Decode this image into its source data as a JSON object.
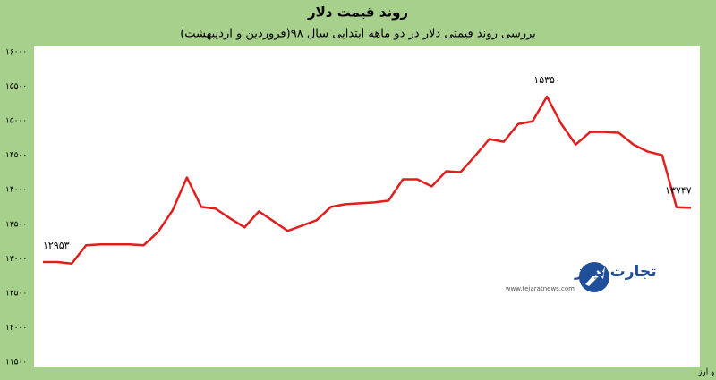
{
  "chart_data": {
    "type": "line",
    "title": "روند قیمت دلار",
    "subtitle": "بررسی روند قیمتی دلار در دو ماهه ابتدایی سال ۹۸(فروردین و اردیبهشت)",
    "source": "منبع: شبکه اطلاع رسانی طلا، سکه و ارز",
    "watermark": {
      "name": "تجارت نیوز",
      "url": "www.tejaratnews.com"
    },
    "color": "#e31c1c",
    "values": [
      12953,
      12953,
      12930,
      13196,
      13209,
      13209,
      13209,
      13196,
      13390,
      13700,
      14178,
      13752,
      13726,
      13584,
      13455,
      13687,
      13545,
      13403,
      13481,
      13558,
      13752,
      13791,
      13804,
      13817,
      13842,
      14152,
      14152,
      14049,
      14268,
      14255,
      14488,
      14734,
      14695,
      14953,
      14992,
      15350,
      14953,
      14656,
      14837,
      14837,
      14824,
      14656,
      14553,
      14501,
      13747,
      13739
    ],
    "value_labels": [
      "۱۲۹۵۳",
      null,
      null,
      null,
      null,
      null,
      null,
      null,
      null,
      null,
      null,
      null,
      null,
      null,
      null,
      null,
      null,
      null,
      null,
      null,
      null,
      null,
      null,
      null,
      null,
      null,
      null,
      null,
      null,
      null,
      null,
      null,
      null,
      null,
      null,
      "۱۵۳۵۰",
      null,
      null,
      null,
      null,
      null,
      null,
      null,
      null,
      "۱۳۷۴۷",
      null
    ],
    "ylim": [
      11500,
      16000
    ],
    "yticks": [
      {
        "value": 11500,
        "label": "۱۱۵۰۰"
      },
      {
        "value": 12000,
        "label": "۱۲۰۰۰"
      },
      {
        "value": 12500,
        "label": "۱۲۵۰۰"
      },
      {
        "value": 13000,
        "label": "۱۳۰۰۰"
      },
      {
        "value": 13500,
        "label": "۱۳۵۰۰"
      },
      {
        "value": 14000,
        "label": "۱۴۰۰۰"
      },
      {
        "value": 14500,
        "label": "۱۴۵۰۰"
      },
      {
        "value": 15000,
        "label": "۱۵۰۰۰"
      },
      {
        "value": 15500,
        "label": "۱۵۵۰۰"
      },
      {
        "value": 16000,
        "label": "۱۶۰۰۰"
      }
    ],
    "grid": false
  }
}
